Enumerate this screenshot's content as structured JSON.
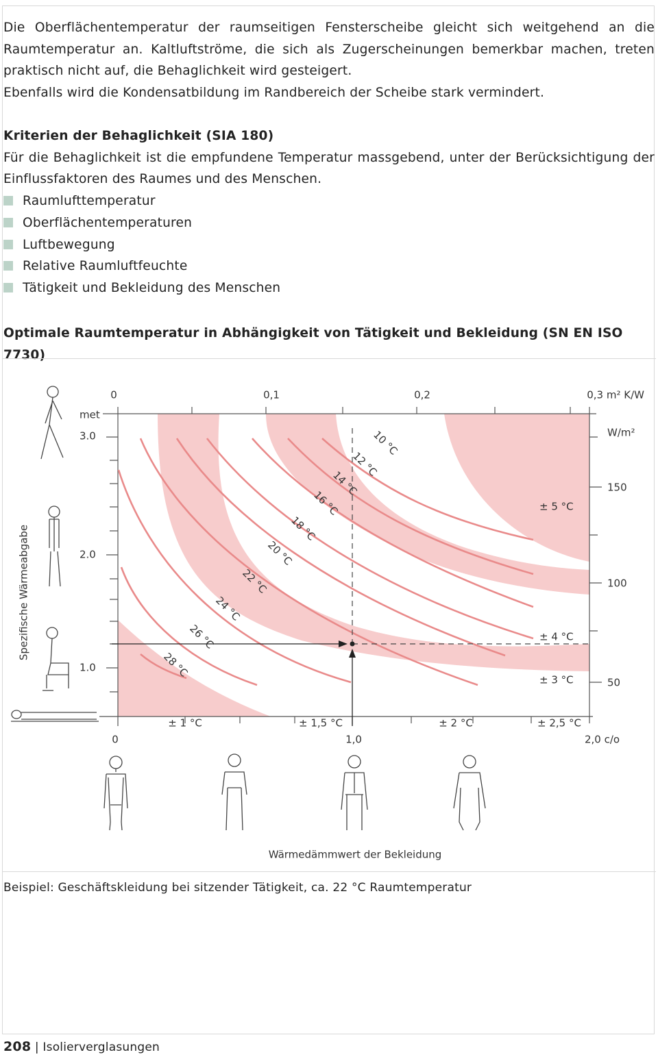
{
  "intro": [
    "Die Oberflächentemperatur der raumseitigen Fensterscheibe gleicht sich weitgehend an die Raumtemperatur an. Kaltluftströme, die sich als Zugerscheinungen bemerkbar machen, treten praktisch nicht auf, die Behaglichkeit wird gesteigert.",
    "Ebenfalls wird die Kondensatbildung im Randbereich der Scheibe stark vermindert."
  ],
  "criteria": {
    "heading": "Kriterien der Behaglichkeit (SIA 180)",
    "text": "Für die Behaglichkeit ist die empfundene Temperatur massgebend, unter der Berücksichtigung der Einflussfaktoren des Raumes und des Menschen.",
    "items": [
      "Raumlufttemperatur",
      "Oberflächentemperaturen",
      "Luftbewegung",
      "Relative Raumluftfeuchte",
      "Tätigkeit und Bekleidung des Menschen"
    ]
  },
  "figure": {
    "title": "Optimale Raumtemperatur in Abhängigkeit von Tätigkeit und Bekleidung (SN EN ISO 7730)",
    "top_axis": [
      "0",
      "0,1",
      "0,2",
      "0,3 m² K/W"
    ],
    "met_label": "met",
    "met_ticks": [
      "3.0",
      "2.0",
      "1.0"
    ],
    "wm2_label": "W/m²",
    "wm2_ticks": [
      "150",
      "100",
      "50"
    ],
    "y_label": "Spezifische Wärmeabgabe",
    "bottom_axis": [
      "0",
      "1,0",
      "2,0 c/o"
    ],
    "bottom_tolerances": [
      "± 1 °C",
      "± 1,5 °C",
      "± 2 °C",
      "± 2,5 °C"
    ],
    "right_tolerances": [
      "± 5 °C",
      "± 4 °C",
      "± 3 °C"
    ],
    "isotherms": [
      "10 °C",
      "12 °C",
      "14 °C",
      "16 °C",
      "18 °C",
      "20 °C",
      "22 °C",
      "24 °C",
      "26 °C",
      "28 °C"
    ],
    "x_label": "Wärmedämmwert der Bekleidung"
  },
  "example": "Beispiel: Geschäftskleidung bei sitzender Tätigkeit, ca. 22 °C Raumtemperatur",
  "footer": {
    "page": "208",
    "section": "Isolierverglasungen"
  }
}
